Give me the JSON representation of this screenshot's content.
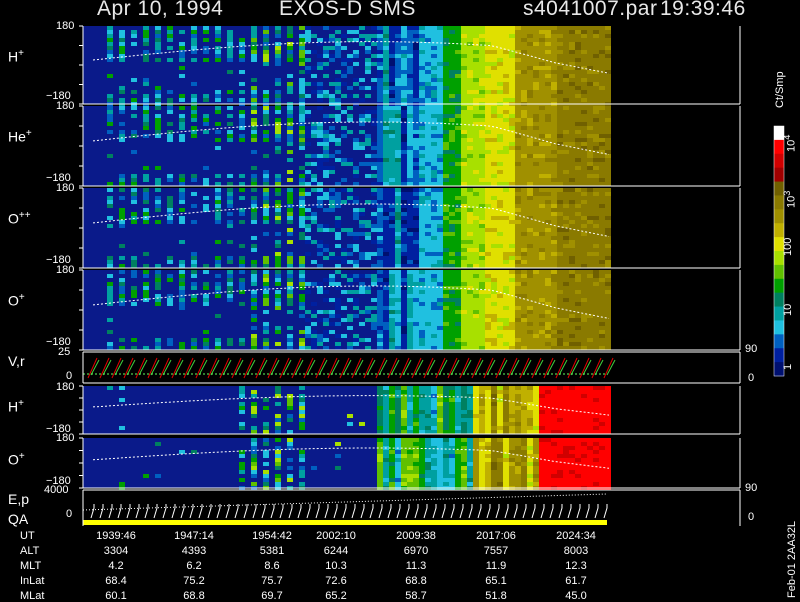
{
  "header": {
    "date": "Apr 10, 1994",
    "mission": "EXOS-D SMS",
    "file": "s4041007.par",
    "time": "19:39:46"
  },
  "panels": [
    {
      "label_base": "H",
      "label_sup": "+",
      "y_top": "180",
      "y_bot": "−180"
    },
    {
      "label_base": "He",
      "label_sup": "+",
      "y_top": "180",
      "y_bot": "−180"
    },
    {
      "label_base": "O",
      "label_sup": "++",
      "y_top": "180",
      "y_bot": "−180"
    },
    {
      "label_base": "O",
      "label_sup": "+",
      "y_top": "180",
      "y_bot": "−180"
    }
  ],
  "vr_panel": {
    "label": "V,r",
    "y_top": "25",
    "y_bot": "0",
    "right_top": "90",
    "right_bot": "0"
  },
  "lower_panels": [
    {
      "label_base": "H",
      "label_sup": "+",
      "y_top": "180",
      "y_bot": "−180"
    },
    {
      "label_base": "O",
      "label_sup": "+",
      "y_top": "180",
      "y_bot": "−180"
    }
  ],
  "ep_panel": {
    "label1": "E,p",
    "label2": "QA",
    "y_top": "4000",
    "y_bot": "0",
    "right_top": "90",
    "right_bot": "0"
  },
  "colorbar": {
    "unit": "Ct/Smp",
    "ticks": [
      {
        "text": "10",
        "sup": "4"
      },
      {
        "text": "10",
        "sup": "3"
      },
      {
        "text": "100",
        "sup": ""
      },
      {
        "text": "10",
        "sup": ""
      },
      {
        "text": "1",
        "sup": ""
      }
    ],
    "colors": [
      "#ffffff",
      "#ff0000",
      "#d00000",
      "#a00000",
      "#706000",
      "#8a7a00",
      "#a09000",
      "#c0b000",
      "#e0e000",
      "#a8e000",
      "#60c000",
      "#00a000",
      "#008060",
      "#00a0a0",
      "#20c0e0",
      "#0060c0",
      "#0020a0",
      "#001070"
    ]
  },
  "footer_id": "Feb-01 2AA32L",
  "chart_data": {
    "type": "heatmap",
    "title": "Apr 10, 1994    EXOS-D SMS",
    "x_axis": "UT",
    "rows": [
      {
        "name": "UT",
        "values": [
          "1939:46",
          "1947:14",
          "1954:42",
          "2002:10",
          "2009:38",
          "2017:06",
          "2024:34"
        ]
      },
      {
        "name": "ALT",
        "values": [
          "3304",
          "4393",
          "5381",
          "6244",
          "6970",
          "7557",
          "8003"
        ]
      },
      {
        "name": "MLT",
        "values": [
          "4.2",
          "6.2",
          "8.6",
          "10.3",
          "11.3",
          "11.9",
          "12.3"
        ]
      },
      {
        "name": "InLat",
        "values": [
          "68.4",
          "75.2",
          "75.7",
          "72.6",
          "68.8",
          "65.1",
          "61.7"
        ]
      },
      {
        "name": "MLat",
        "values": [
          "60.1",
          "68.8",
          "69.7",
          "65.2",
          "58.7",
          "51.8",
          "45.0"
        ]
      }
    ],
    "colorbar_ticks": [
      "10^4",
      "10^3",
      "100",
      "10",
      "1"
    ],
    "colorbar_unit": "Ct/Smp"
  }
}
